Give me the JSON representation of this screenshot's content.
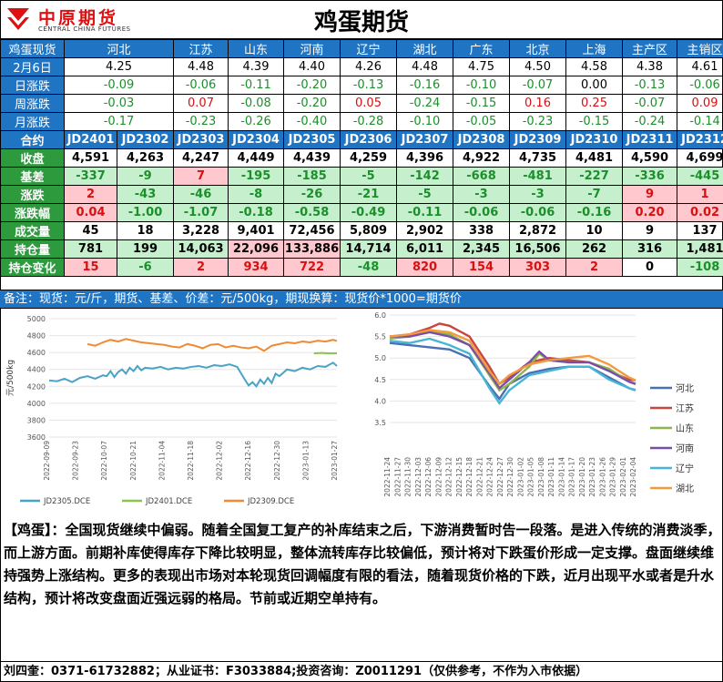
{
  "header": {
    "logo_cn": "中原期货",
    "logo_en": "CENTRAL CHINA FUTURES",
    "title": "鸡蛋期货"
  },
  "spot": {
    "label": "鸡蛋现货",
    "regions": [
      "河北",
      "江苏",
      "山东",
      "河南",
      "辽宁",
      "湖北",
      "广东",
      "北京",
      "上海",
      "主产区",
      "主销区"
    ],
    "rows": [
      {
        "label": "2月6日",
        "values": [
          "4.25",
          "4.48",
          "4.39",
          "4.40",
          "4.26",
          "4.48",
          "4.75",
          "4.50",
          "4.58",
          "4.38",
          "4.61"
        ],
        "colors": [
          "black",
          "black",
          "black",
          "black",
          "black",
          "black",
          "black",
          "black",
          "black",
          "black",
          "black"
        ]
      },
      {
        "label": "日涨跌",
        "values": [
          "-0.09",
          "-0.06",
          "-0.11",
          "-0.20",
          "-0.13",
          "-0.16",
          "-0.10",
          "-0.07",
          "0.00",
          "-0.13",
          "-0.06"
        ],
        "colors": [
          "green",
          "green",
          "green",
          "green",
          "green",
          "green",
          "green",
          "green",
          "black",
          "green",
          "green"
        ]
      },
      {
        "label": "周涨跌",
        "values": [
          "-0.03",
          "0.07",
          "-0.08",
          "-0.20",
          "0.05",
          "-0.24",
          "-0.15",
          "0.16",
          "0.25",
          "-0.07",
          "0.09"
        ],
        "colors": [
          "green",
          "red",
          "green",
          "green",
          "red",
          "green",
          "green",
          "red",
          "red",
          "green",
          "red"
        ]
      },
      {
        "label": "月涨跌",
        "values": [
          "-0.17",
          "-0.23",
          "-0.26",
          "-0.40",
          "-0.28",
          "-0.10",
          "-0.05",
          "-0.23",
          "-0.15",
          "-0.24",
          "-0.14"
        ],
        "colors": [
          "green",
          "green",
          "green",
          "green",
          "green",
          "green",
          "green",
          "green",
          "green",
          "green",
          "green"
        ]
      }
    ]
  },
  "futures": {
    "label": "合约",
    "contracts": [
      "JD2401",
      "JD2302",
      "JD2303",
      "JD2304",
      "JD2305",
      "JD2306",
      "JD2307",
      "JD2308",
      "JD2309",
      "JD2310",
      "JD2311",
      "JD2312"
    ],
    "rows": [
      {
        "label": "收盘",
        "values": [
          "4,591",
          "4,263",
          "4,247",
          "4,449",
          "4,439",
          "4,259",
          "4,396",
          "4,922",
          "4,735",
          "4,481",
          "4,590",
          "4,699"
        ],
        "styles": [
          "",
          "",
          "",
          "",
          "",
          "",
          "",
          "",
          "",
          "",
          "",
          ""
        ]
      },
      {
        "label": "基差",
        "values": [
          "-337",
          "-9",
          "7",
          "-195",
          "-185",
          "-5",
          "-142",
          "-668",
          "-481",
          "-227",
          "-336",
          "-445"
        ],
        "styles": [
          "g",
          "g",
          "r",
          "g",
          "g",
          "g",
          "g",
          "g",
          "g",
          "g",
          "g",
          "g"
        ]
      },
      {
        "label": "涨跌",
        "values": [
          "2",
          "-43",
          "-46",
          "-8",
          "-26",
          "-21",
          "-5",
          "-3",
          "-3",
          "-7",
          "9",
          "1"
        ],
        "styles": [
          "r",
          "g",
          "g",
          "g",
          "g",
          "g",
          "g",
          "g",
          "g",
          "g",
          "r",
          "r"
        ]
      },
      {
        "label": "涨跌幅",
        "values": [
          "0.04",
          "-1.00",
          "-1.07",
          "-0.18",
          "-0.58",
          "-0.49",
          "-0.11",
          "-0.06",
          "-0.06",
          "-0.16",
          "0.20",
          "0.02"
        ],
        "styles": [
          "r",
          "g",
          "g",
          "g",
          "g",
          "g",
          "g",
          "g",
          "g",
          "g",
          "r",
          "r"
        ]
      },
      {
        "label": "成交量",
        "values": [
          "45",
          "18",
          "3,228",
          "9,401",
          "72,456",
          "5,809",
          "2,902",
          "338",
          "2,872",
          "10",
          "9",
          "137"
        ],
        "styles": [
          "",
          "",
          "",
          "",
          "",
          "",
          "",
          "",
          "",
          "",
          "",
          ""
        ]
      },
      {
        "label": "持仓量",
        "values": [
          "781",
          "199",
          "14,063",
          "22,096",
          "133,886",
          "14,714",
          "6,011",
          "2,345",
          "16,506",
          "262",
          "316",
          "1,481"
        ],
        "styles": [
          "g",
          "g",
          "g",
          "r",
          "r",
          "g",
          "g",
          "g",
          "g",
          "g",
          "g",
          "g"
        ]
      },
      {
        "label": "持仓变化",
        "values": [
          "15",
          "-6",
          "2",
          "934",
          "722",
          "-48",
          "820",
          "154",
          "303",
          "2",
          "0",
          "-108"
        ],
        "styles": [
          "r",
          "g",
          "r",
          "r",
          "r",
          "g",
          "r",
          "r",
          "r",
          "r",
          "",
          "g"
        ]
      }
    ]
  },
  "note": "备注：现货：元/斤，期货、基差、价差：元/500kg，期现换算：现货价*1000=期货价",
  "colors": {
    "blue_header": "#1f75c4",
    "green_label": "#2e9a3e",
    "up": "#d81010",
    "down": "#1a8f2a"
  },
  "chart_data": [
    {
      "type": "line",
      "ylabel": "元/500kg",
      "ylim": [
        3600,
        5000
      ],
      "yticks": [
        3600,
        3800,
        4000,
        4200,
        4400,
        4600,
        4800,
        5000
      ],
      "xticks": [
        "2022-09-09",
        "2022-09-23",
        "2022-10-07",
        "2022-10-21",
        "2022-11-04",
        "2022-11-18",
        "2022-12-02",
        "2022-12-16",
        "2022-12-30",
        "2023-01-13",
        "2023-01-27"
      ],
      "x_range": [
        0,
        150
      ],
      "legend_position": "bottom",
      "series": [
        {
          "name": "JD2305.DCE",
          "color": "#4aa3c6",
          "x": [
            0,
            4,
            8,
            12,
            16,
            20,
            24,
            28,
            30,
            32,
            34,
            36,
            38,
            40,
            42,
            44,
            46,
            48,
            50,
            54,
            58,
            62,
            66,
            70,
            74,
            78,
            82,
            86,
            90,
            94,
            98,
            102,
            104,
            106,
            108,
            110,
            112,
            114,
            116,
            118,
            120,
            124,
            128,
            132,
            136,
            140,
            144,
            148,
            150
          ],
          "y": [
            4270,
            4260,
            4290,
            4250,
            4300,
            4320,
            4290,
            4330,
            4320,
            4380,
            4310,
            4370,
            4400,
            4350,
            4420,
            4380,
            4440,
            4390,
            4420,
            4410,
            4430,
            4400,
            4420,
            4410,
            4430,
            4440,
            4420,
            4450,
            4440,
            4460,
            4430,
            4280,
            4210,
            4250,
            4200,
            4280,
            4230,
            4300,
            4240,
            4350,
            4320,
            4400,
            4380,
            4420,
            4400,
            4440,
            4430,
            4480,
            4440
          ]
        },
        {
          "name": "JD2401.DCE",
          "color": "#8fc24f",
          "x": [
            138,
            142,
            146,
            150
          ],
          "y": [
            4590,
            4595,
            4590,
            4591
          ]
        },
        {
          "name": "JD2309.DCE",
          "color": "#f08a33",
          "x": [
            20,
            24,
            28,
            32,
            36,
            40,
            44,
            48,
            52,
            56,
            60,
            64,
            68,
            72,
            76,
            80,
            84,
            88,
            92,
            96,
            100,
            104,
            108,
            112,
            116,
            120,
            124,
            128,
            132,
            136,
            140,
            144,
            148,
            150
          ],
          "y": [
            4700,
            4680,
            4720,
            4750,
            4730,
            4760,
            4740,
            4720,
            4710,
            4700,
            4690,
            4670,
            4660,
            4700,
            4680,
            4650,
            4690,
            4700,
            4660,
            4680,
            4660,
            4650,
            4670,
            4620,
            4680,
            4700,
            4720,
            4710,
            4730,
            4720,
            4740,
            4730,
            4750,
            4735
          ]
        }
      ]
    },
    {
      "type": "line",
      "ylim": [
        3.5,
        6.0
      ],
      "yticks": [
        "3.5",
        "4.0",
        "4.5",
        "5.0",
        "5.5",
        "6.0"
      ],
      "xticks": [
        "2022-11-24",
        "2022-11-27",
        "2022-11-30",
        "2022-12-03",
        "2022-12-06",
        "2022-12-09",
        "2022-12-12",
        "2022-12-15",
        "2022-12-18",
        "2022-12-21",
        "2022-12-24",
        "2022-12-27",
        "2022-12-30",
        "2023-01-02",
        "2023-01-05",
        "2023-01-08",
        "2023-01-11",
        "2023-01-14",
        "2023-01-17",
        "2023-01-20",
        "2023-01-23",
        "2023-01-26",
        "2023-01-29",
        "2023-02-01",
        "2023-02-04"
      ],
      "x_range": [
        0,
        74
      ],
      "legend_position": "right",
      "series": [
        {
          "name": "河北",
          "color": "#4a6fb5",
          "x": [
            0,
            6,
            12,
            18,
            24,
            30,
            33,
            36,
            42,
            48,
            54,
            60,
            66,
            72,
            74
          ],
          "y": [
            5.35,
            5.3,
            5.25,
            5.2,
            5.0,
            4.35,
            4.05,
            4.4,
            4.65,
            4.75,
            4.8,
            4.8,
            4.55,
            4.3,
            4.25
          ]
        },
        {
          "name": "江苏",
          "color": "#c8463e",
          "x": [
            0,
            6,
            12,
            15,
            18,
            24,
            30,
            33,
            36,
            42,
            48,
            54,
            60,
            66,
            72,
            74
          ],
          "y": [
            5.5,
            5.55,
            5.7,
            5.8,
            5.75,
            5.5,
            4.8,
            4.4,
            4.55,
            4.9,
            5.0,
            4.95,
            4.9,
            4.7,
            4.5,
            4.48
          ]
        },
        {
          "name": "山东",
          "color": "#8db54a",
          "x": [
            0,
            6,
            12,
            18,
            24,
            30,
            33,
            36,
            42,
            45,
            48,
            54,
            60,
            66,
            72,
            74
          ],
          "y": [
            5.45,
            5.5,
            5.6,
            5.55,
            5.3,
            4.6,
            4.25,
            4.4,
            4.8,
            5.1,
            4.95,
            4.9,
            4.9,
            4.75,
            4.45,
            4.39
          ]
        },
        {
          "name": "河南",
          "color": "#7a4ea8",
          "x": [
            0,
            6,
            12,
            18,
            24,
            30,
            33,
            36,
            42,
            45,
            48,
            54,
            60,
            66,
            72,
            74
          ],
          "y": [
            5.5,
            5.5,
            5.6,
            5.5,
            5.3,
            4.65,
            4.3,
            4.5,
            4.9,
            5.15,
            4.95,
            4.9,
            4.9,
            4.7,
            4.45,
            4.4
          ]
        },
        {
          "name": "辽宁",
          "color": "#47b5d6",
          "x": [
            0,
            6,
            12,
            18,
            24,
            30,
            33,
            36,
            42,
            48,
            54,
            60,
            66,
            72,
            74
          ],
          "y": [
            5.4,
            5.35,
            5.45,
            5.3,
            5.1,
            4.3,
            3.95,
            4.25,
            4.6,
            4.7,
            4.8,
            4.8,
            4.5,
            4.3,
            4.26
          ]
        },
        {
          "name": "湖北",
          "color": "#f39a3e",
          "x": [
            0,
            6,
            12,
            18,
            24,
            30,
            33,
            36,
            42,
            48,
            54,
            60,
            66,
            72,
            74
          ],
          "y": [
            5.5,
            5.55,
            5.65,
            5.6,
            5.4,
            4.7,
            4.4,
            4.6,
            4.85,
            4.95,
            5.0,
            5.05,
            4.85,
            4.55,
            4.48
          ]
        }
      ]
    }
  ],
  "comment": "【鸡蛋】：全国现货继续中偏弱。随着全国复工复产的补库结束之后，下游消费暂时告一段落。是进入传统的消费淡季，而上游方面。前期补库使得库存下降比较明显，整体流转库存比较偏低，预计将对下跌蛋价形成一定支撑。盘面继续维持强势上涨结构。更多的表现出市场对本轮现货回调幅度有限的看法，随着现货价格的下跌，近月出现平水或者是升水结构，预计将改变盘面近强远弱的格局。节前或近期空单持有。",
  "footer": "刘四奎：0371-61732882；从业证书：F3033884;投资咨询：Z0011291（仅供参考，不作为入市依据）"
}
